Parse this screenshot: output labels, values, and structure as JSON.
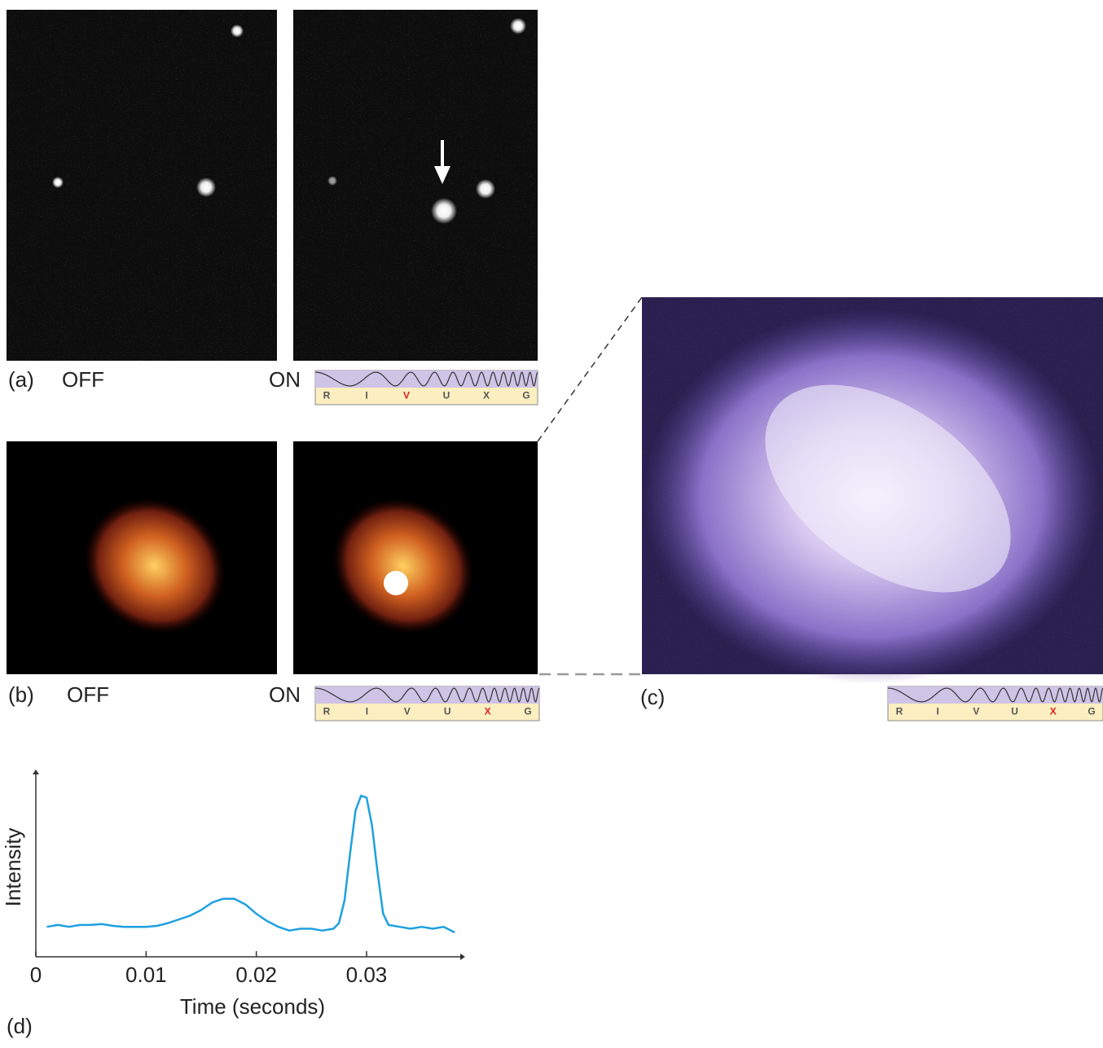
{
  "panels": [
    {
      "label": "(a)",
      "off": "OFF",
      "on": "ON"
    },
    {
      "label": "(b)",
      "off": "OFF",
      "on": "ON"
    },
    {
      "label": "(c)"
    }
  ],
  "spectra": [
    {
      "letters": [
        "R",
        "I",
        "V",
        "U",
        "X",
        "G"
      ],
      "highlight_index": 2
    },
    {
      "letters": [
        "R",
        "I",
        "V",
        "U",
        "X",
        "G"
      ],
      "highlight_index": 4
    },
    {
      "letters": [
        "R",
        "I",
        "V",
        "U",
        "X",
        "G"
      ],
      "highlight_index": 4
    }
  ],
  "chart_data": {
    "type": "line",
    "label": "(d)",
    "x_label": "Time (seconds)",
    "y_label": "Intensity",
    "color": "#1ea0e0",
    "x": [
      0.001,
      0.002,
      0.003,
      0.004,
      0.005,
      0.006,
      0.007,
      0.008,
      0.009,
      0.01,
      0.011,
      0.012,
      0.013,
      0.014,
      0.015,
      0.016,
      0.017,
      0.018,
      0.019,
      0.02,
      0.021,
      0.022,
      0.023,
      0.024,
      0.025,
      0.026,
      0.027,
      0.0275,
      0.028,
      0.0285,
      0.029,
      0.0295,
      0.03,
      0.0305,
      0.031,
      0.0315,
      0.032,
      0.033,
      0.034,
      0.035,
      0.036,
      0.037,
      0.038
    ],
    "values": [
      1.6,
      1.7,
      1.6,
      1.7,
      1.7,
      1.75,
      1.65,
      1.6,
      1.6,
      1.6,
      1.65,
      1.8,
      2.0,
      2.2,
      2.5,
      2.9,
      3.1,
      3.1,
      2.8,
      2.3,
      1.9,
      1.6,
      1.4,
      1.5,
      1.5,
      1.4,
      1.5,
      1.8,
      3.0,
      5.5,
      7.8,
      8.6,
      8.5,
      7.0,
      4.5,
      2.3,
      1.7,
      1.6,
      1.5,
      1.6,
      1.5,
      1.6,
      1.3
    ],
    "xlim": [
      0,
      0.0385
    ],
    "ylim": [
      0,
      10
    ],
    "xticks": [
      0,
      0.01,
      0.02,
      0.03
    ]
  }
}
